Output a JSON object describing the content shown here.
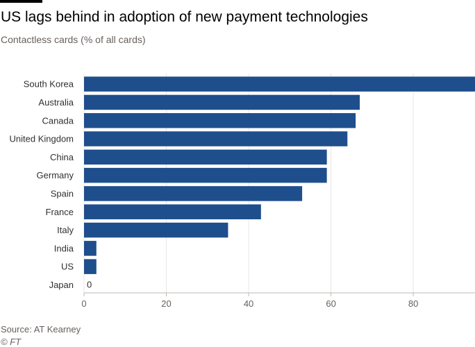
{
  "header": {
    "title": "US lags behind in adoption of new payment technologies",
    "subtitle": "Contactless cards (% of all cards)"
  },
  "footer": {
    "source": "Source: AT Kearney",
    "credit": "© FT"
  },
  "colors": {
    "bar": "#1f4e8c",
    "grid": "#e8e6e3",
    "axis": "#bdb9b5"
  },
  "chart_data": {
    "type": "bar",
    "orientation": "horizontal",
    "categories": [
      "South Korea",
      "Australia",
      "Canada",
      "United Kingdom",
      "China",
      "Germany",
      "Spain",
      "France",
      "Italy",
      "India",
      "US",
      "Japan"
    ],
    "values": [
      95,
      67,
      66,
      64,
      59,
      59,
      53,
      43,
      35,
      3,
      3,
      0
    ],
    "data_labels": {
      "Japan": "0"
    },
    "xticks": [
      0,
      20,
      40,
      60,
      80
    ],
    "xlim": [
      0,
      95
    ],
    "grid": true
  }
}
